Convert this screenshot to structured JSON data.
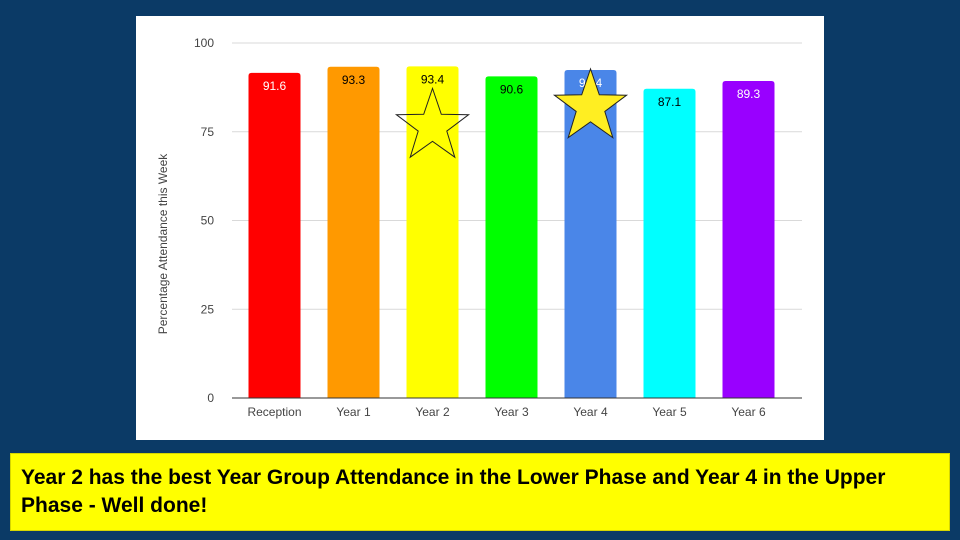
{
  "chart_data": {
    "type": "bar",
    "categories": [
      "Reception",
      "Year 1",
      "Year 2",
      "Year 3",
      "Year 4",
      "Year 5",
      "Year 6"
    ],
    "values": [
      91.6,
      93.3,
      93.4,
      90.6,
      92.4,
      87.1,
      89.3
    ],
    "bar_colors": [
      "#ff0000",
      "#ff9900",
      "#ffff00",
      "#00ff00",
      "#4a86e8",
      "#00ffff",
      "#9900ff"
    ],
    "value_label_colors": [
      "#ffffff",
      "#000000",
      "#000000",
      "#000000",
      "#ffffff",
      "#000000",
      "#ffffff"
    ],
    "ylabel": "Percentage Attendance this Week",
    "ylim": [
      0,
      100
    ],
    "yticks": [
      0,
      25,
      50,
      75,
      100
    ],
    "grid": true,
    "highlight_stars": [
      {
        "category": "Year 2",
        "style": "outline"
      },
      {
        "category": "Year 4",
        "style": "filled"
      }
    ],
    "star_color": "#ffee22"
  },
  "caption": {
    "text": "Year 2 has the best Year Group Attendance in the Lower Phase and Year 4 in the Upper Phase - Well done!"
  },
  "colors": {
    "background": "#0b3a66",
    "caption_background": "#ffff00"
  }
}
